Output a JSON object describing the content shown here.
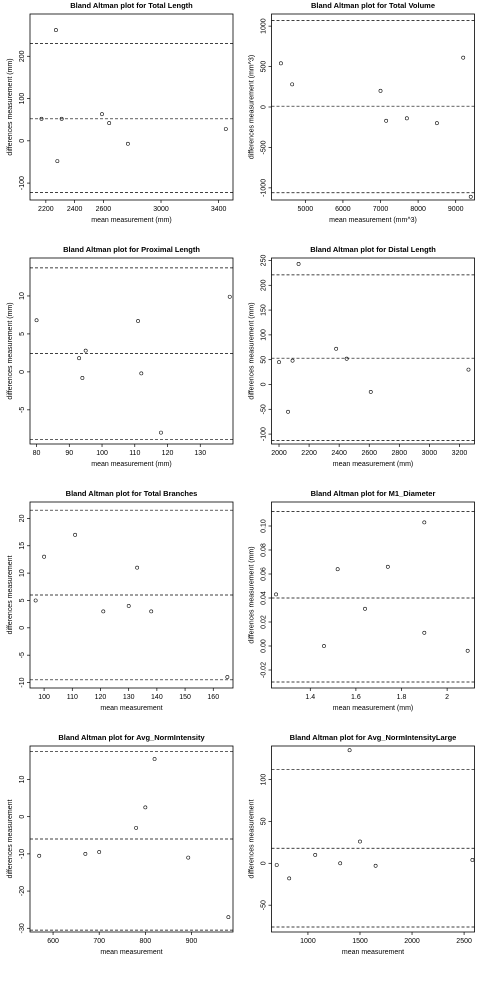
{
  "chart_data": [
    {
      "type": "scatter",
      "title": "Bland Altman plot for Total Length",
      "x_label": "mean measurement (mm)",
      "y_label": "differences measurement (mm)",
      "x": [
        2170,
        2270,
        2280,
        2310,
        2590,
        2640,
        2770,
        3450
      ],
      "y": [
        52,
        262,
        -48,
        52,
        63,
        42,
        -7,
        28
      ],
      "xlim": [
        2090,
        3500
      ],
      "ylim": [
        -140,
        300
      ],
      "xticks": [
        2200,
        2400,
        2600,
        3000,
        3400
      ],
      "yticks": [
        -100,
        0,
        100,
        200
      ],
      "hlines": [
        230,
        52,
        -122
      ]
    },
    {
      "type": "scatter",
      "title": "Bland Altman plot for Total Volume",
      "x_label": "mean measurement (mm^3)",
      "y_label": "differences measurement (mm^3)",
      "x": [
        4350,
        4650,
        7000,
        7150,
        7700,
        8500,
        9200,
        9400
      ],
      "y": [
        540,
        280,
        200,
        -170,
        -140,
        -200,
        610,
        -1110
      ],
      "xlim": [
        4100,
        9500
      ],
      "ylim": [
        -1150,
        1150
      ],
      "xticks": [
        5000,
        6000,
        7000,
        8000,
        9000
      ],
      "yticks": [
        -1000,
        -500,
        0,
        500,
        1000
      ],
      "hlines": [
        1070,
        10,
        -1060
      ]
    },
    {
      "type": "scatter",
      "title": "Bland Altman plot for Proximal Length",
      "x_label": "mean measurement (mm)",
      "y_label": "differences measurement (mm)",
      "x": [
        80,
        93,
        94,
        95,
        111,
        112,
        118,
        139
      ],
      "y": [
        6.8,
        1.8,
        -0.8,
        2.8,
        6.7,
        -0.2,
        -8.0,
        9.9
      ],
      "xlim": [
        78,
        140
      ],
      "ylim": [
        -9.5,
        15
      ],
      "xticks": [
        80,
        90,
        100,
        110,
        120,
        130
      ],
      "yticks": [
        -5,
        0,
        5,
        10
      ],
      "hlines": [
        13.7,
        2.4,
        -8.9
      ]
    },
    {
      "type": "scatter",
      "title": "Bland Altman plot for Distal Length",
      "x_label": "mean measurement (mm)",
      "y_label": "differences measurement (mm)",
      "x": [
        2000,
        2060,
        2090,
        2130,
        2380,
        2450,
        2610,
        3260
      ],
      "y": [
        45,
        -55,
        48,
        243,
        72,
        52,
        -15,
        30
      ],
      "xlim": [
        1950,
        3300
      ],
      "ylim": [
        -120,
        255
      ],
      "xticks": [
        2000,
        2200,
        2400,
        2600,
        2800,
        3000,
        3200
      ],
      "yticks": [
        -100,
        -50,
        0,
        50,
        100,
        150,
        200,
        250
      ],
      "hlines": [
        221,
        53,
        -113
      ]
    },
    {
      "type": "scatter",
      "title": "Bland Altman plot for Total Branches",
      "x_label": "mean measurement",
      "y_label": "differences measurement",
      "x": [
        97,
        100,
        111,
        121,
        130,
        133,
        138,
        165
      ],
      "y": [
        5,
        13,
        17,
        3,
        4,
        11,
        3,
        -9
      ],
      "xlim": [
        95,
        167
      ],
      "ylim": [
        -11,
        23
      ],
      "xticks": [
        100,
        110,
        120,
        130,
        140,
        150,
        160
      ],
      "yticks": [
        -10,
        -5,
        0,
        5,
        10,
        15,
        20
      ],
      "hlines": [
        21.5,
        6,
        -9.5
      ]
    },
    {
      "type": "scatter",
      "title": "Bland Altman plot for M1_Diameter",
      "x_label": "mean measurement (mm)",
      "y_label": "differences measurement (mm)",
      "x": [
        1.25,
        1.46,
        1.52,
        1.64,
        1.74,
        1.9,
        1.9,
        2.09
      ],
      "y": [
        0.043,
        0.0,
        0.064,
        0.031,
        0.066,
        0.103,
        0.011,
        -0.004
      ],
      "xlim": [
        1.23,
        2.12
      ],
      "ylim": [
        -0.035,
        0.12
      ],
      "xticks": [
        1.4,
        1.6,
        1.8,
        2.0
      ],
      "yticks": [
        -0.02,
        {
          "value": 0,
          "label": "0.00"
        },
        0.02,
        0.04,
        0.06,
        0.08,
        {
          "value": 0.1,
          "label": "0.10"
        }
      ],
      "hlines": [
        0.112,
        0.04,
        -0.03
      ]
    },
    {
      "type": "scatter",
      "title": "Bland Altman plot for Avg_NormIntensity",
      "x_label": "mean measurement",
      "y_label": "differences measurement",
      "x": [
        570,
        670,
        700,
        780,
        800,
        820,
        893,
        980
      ],
      "y": [
        -10.5,
        -10,
        -9.5,
        -3,
        2.5,
        15.5,
        -11,
        -27
      ],
      "xlim": [
        550,
        990
      ],
      "ylim": [
        -31,
        19
      ],
      "xticks": [
        600,
        700,
        800,
        900
      ],
      "yticks": [
        -30,
        -20,
        -10,
        0,
        10
      ],
      "hlines": [
        17.5,
        -6,
        -30.5
      ]
    },
    {
      "type": "scatter",
      "title": "Bland Altman plot for Avg_NormIntensityLarge",
      "x_label": "mean measurement",
      "y_label": "differences measurement",
      "x": [
        700,
        820,
        1070,
        1310,
        1400,
        1500,
        1650,
        2580
      ],
      "y": [
        -2,
        -18,
        10,
        0,
        135,
        26,
        -3,
        4
      ],
      "xlim": [
        650,
        2600
      ],
      "ylim": [
        -82,
        140
      ],
      "xticks": [
        1000,
        1500,
        2000,
        2500
      ],
      "yticks": [
        -50,
        0,
        50,
        100
      ],
      "hlines": [
        112,
        18,
        -76
      ]
    }
  ]
}
